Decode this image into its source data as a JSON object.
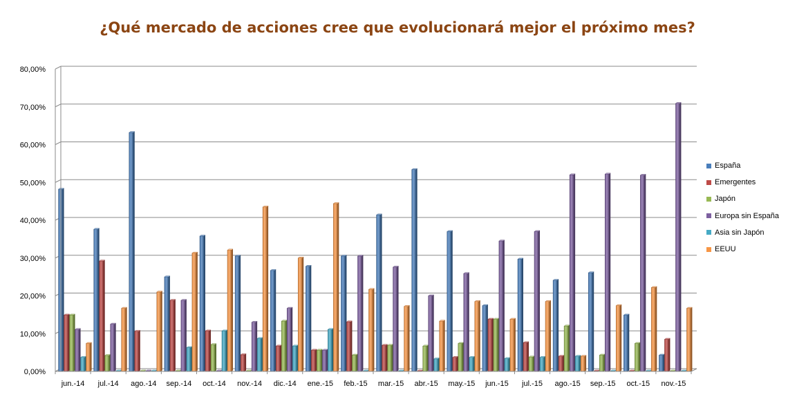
{
  "chart_data": {
    "type": "bar",
    "title": "¿Qué mercado de acciones cree que evolucionará mejor el próximo mes?",
    "categories": [
      "jun.-14",
      "jul.-14",
      "ago.-14",
      "sep.-14",
      "oct.-14",
      "nov.-14",
      "dic.-14",
      "ene.-15",
      "feb.-15",
      "mar.-15",
      "abr.-15",
      "may.-15",
      "jun.-15",
      "jul.-15",
      "ago.-15",
      "sep.-15",
      "oct.-15",
      "nov.-15"
    ],
    "ylim": [
      0,
      80
    ],
    "yticks": [
      "0,00%",
      "10,00%",
      "20,00%",
      "30,00%",
      "40,00%",
      "50,00%",
      "60,00%",
      "70,00%",
      "80,00%"
    ],
    "grid": true,
    "legend_position": "right",
    "series": [
      {
        "name": "España",
        "color": "#4A7EBB",
        "values": [
          48.2,
          37.6,
          63.2,
          25.0,
          35.8,
          30.5,
          26.7,
          27.8,
          30.5,
          41.4,
          53.4,
          37.0,
          17.4,
          29.7,
          24.1,
          26.1,
          14.9,
          4.3
        ]
      },
      {
        "name": "Emergentes",
        "color": "#BE4B48",
        "values": [
          14.9,
          29.2,
          10.6,
          18.8,
          10.7,
          4.4,
          6.7,
          5.6,
          13.1,
          6.9,
          0.0,
          3.7,
          13.8,
          7.6,
          4.0,
          0.0,
          0.0,
          8.5
        ]
      },
      {
        "name": "Japón",
        "color": "#98B954",
        "values": [
          14.9,
          4.2,
          0.0,
          0.0,
          7.1,
          0.0,
          13.3,
          5.6,
          4.3,
          6.9,
          6.7,
          7.4,
          13.8,
          3.8,
          12.0,
          4.3,
          7.4,
          0.0
        ]
      },
      {
        "name": "Europa sin España",
        "color": "#7D60A0",
        "values": [
          11.1,
          12.5,
          0.0,
          18.8,
          0.0,
          13.0,
          16.7,
          5.6,
          30.5,
          27.6,
          20.0,
          25.9,
          34.5,
          37.0,
          52.0,
          52.2,
          51.9,
          70.9
        ]
      },
      {
        "name": "Asia sin Japón",
        "color": "#46AAC5",
        "values": [
          3.7,
          0.0,
          0.0,
          6.3,
          10.7,
          8.7,
          6.7,
          11.1,
          0.0,
          0.0,
          3.3,
          3.7,
          3.4,
          3.7,
          4.0,
          0.0,
          0.0,
          0.0
        ]
      },
      {
        "name": "EEUU",
        "color": "#F79646",
        "values": [
          7.4,
          16.7,
          21.0,
          31.3,
          32.1,
          43.5,
          30.0,
          44.4,
          21.7,
          17.2,
          13.3,
          18.5,
          13.8,
          18.5,
          4.0,
          17.4,
          22.2,
          16.7
        ]
      }
    ]
  }
}
